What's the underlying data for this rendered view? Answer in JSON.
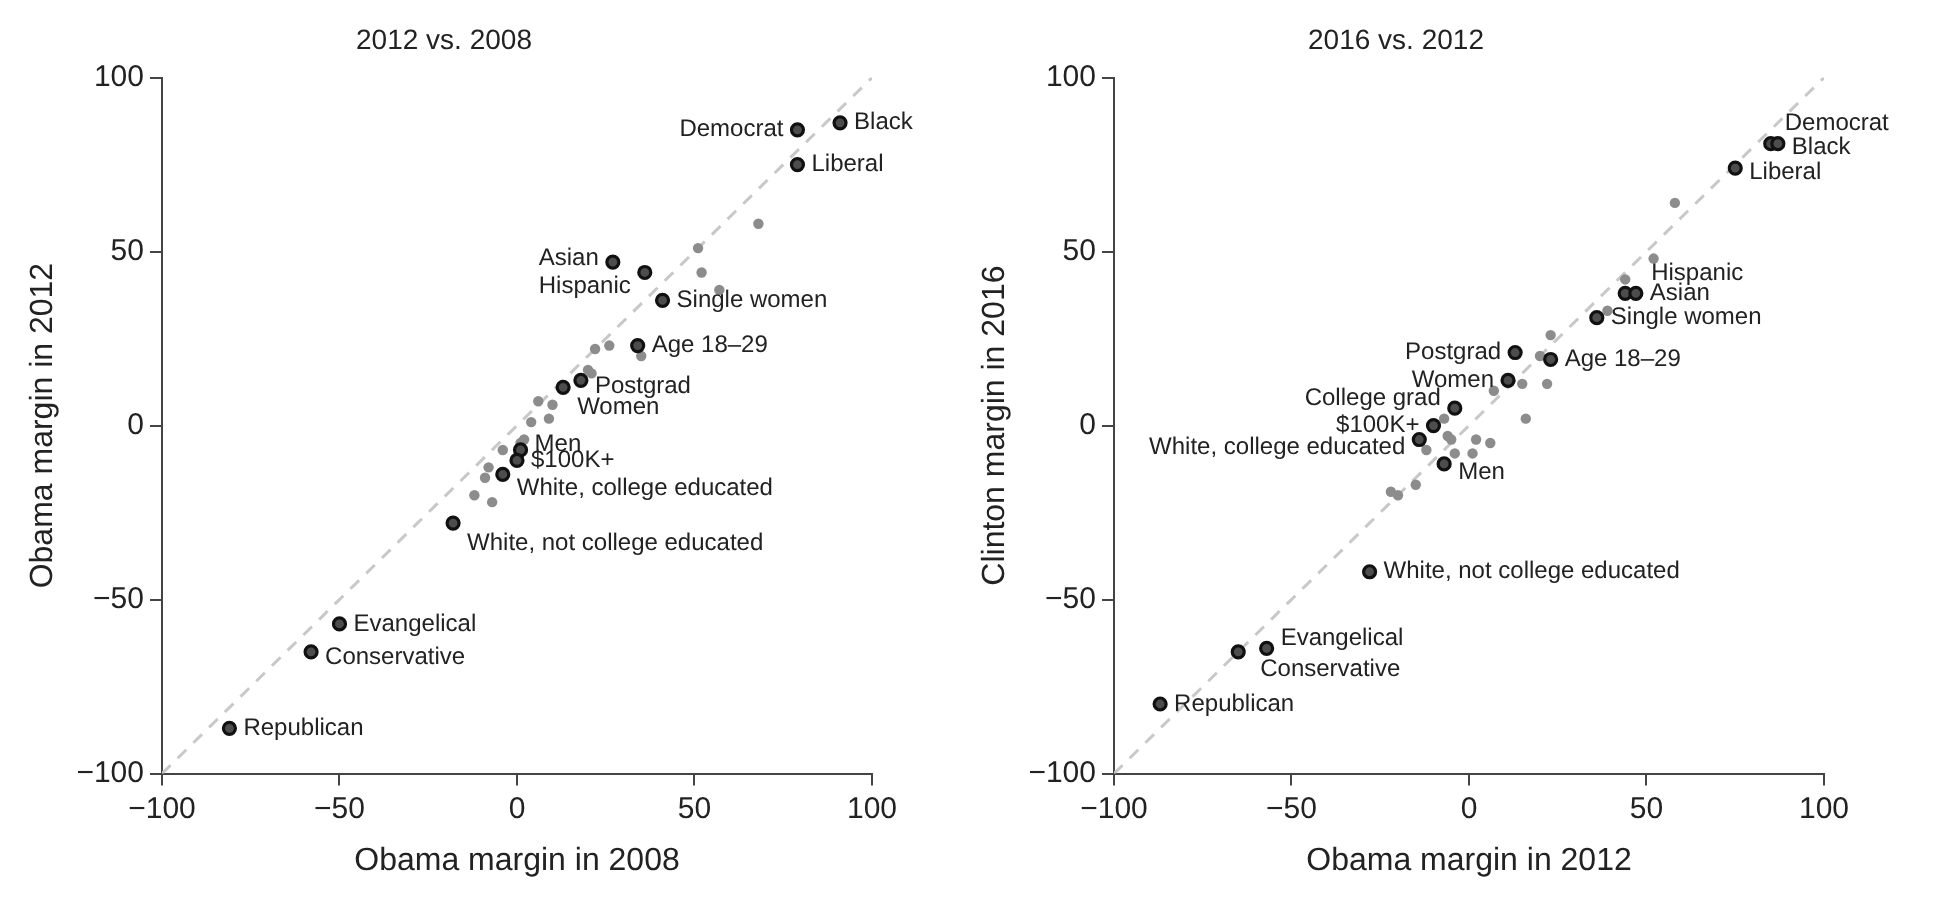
{
  "chart_data": [
    {
      "type": "scatter",
      "title": "2012 vs. 2008",
      "xlabel": "Obama margin in 2008",
      "ylabel": "Obama margin in 2012",
      "xlim": [
        -100,
        100
      ],
      "ylim": [
        -100,
        100
      ],
      "xticks": [
        -100,
        -50,
        0,
        50,
        100
      ],
      "yticks": [
        -100,
        -50,
        0,
        50,
        100
      ],
      "marker": "circle",
      "series": [
        {
          "type": "line",
          "color": "#c8c8c8",
          "line_style": "dashed",
          "marker": "none",
          "x": [
            -100,
            100
          ],
          "values": [
            -100,
            100
          ]
        },
        {
          "color": "#8c8c8c",
          "x": [
            68,
            51,
            52,
            57,
            22,
            26,
            35,
            20,
            21,
            6,
            10,
            4,
            9,
            2,
            1,
            -4,
            -8,
            -9,
            -12,
            -7
          ],
          "values": [
            58,
            51,
            44,
            39,
            22,
            23,
            20,
            16,
            15,
            7,
            6,
            1,
            2,
            -4,
            -5,
            -7,
            -12,
            -15,
            -20,
            -22
          ]
        },
        {
          "color": "#4d4d4d",
          "x": [
            91,
            79,
            79,
            27,
            36,
            41,
            34,
            18,
            13,
            1,
            0,
            -4,
            -18,
            -50,
            -58,
            -81
          ],
          "values": [
            87,
            85,
            75,
            47,
            44,
            36,
            23,
            13,
            11,
            -7,
            -10,
            -14,
            -28,
            -57,
            -65,
            -87
          ]
        }
      ],
      "annotations": [
        {
          "text": "Black",
          "x": 91,
          "y": 87
        },
        {
          "text": "Democrat",
          "x": 79,
          "y": 85
        },
        {
          "text": "Liberal",
          "x": 79,
          "y": 75
        },
        {
          "text": "Asian",
          "x": 27,
          "y": 47
        },
        {
          "text": "Hispanic",
          "x": 36,
          "y": 44
        },
        {
          "text": "Single women",
          "x": 41,
          "y": 36
        },
        {
          "text": "Age 18–29",
          "x": 34,
          "y": 23
        },
        {
          "text": "Postgrad",
          "x": 18,
          "y": 13
        },
        {
          "text": "Women",
          "x": 13,
          "y": 11
        },
        {
          "text": "Men",
          "x": 1,
          "y": -7
        },
        {
          "text": "$100K+",
          "x": 0,
          "y": -10
        },
        {
          "text": "White, college educated",
          "x": -4,
          "y": -14
        },
        {
          "text": "White, not college educated",
          "x": -18,
          "y": -28
        },
        {
          "text": "Evangelical",
          "x": -50,
          "y": -57
        },
        {
          "text": "Conservative",
          "x": -58,
          "y": -65
        },
        {
          "text": "Republican",
          "x": -81,
          "y": -87
        }
      ]
    },
    {
      "type": "scatter",
      "title": "2016 vs. 2012",
      "xlabel": "Obama margin in 2012",
      "ylabel": "Clinton margin in 2016",
      "xlim": [
        -100,
        100
      ],
      "ylim": [
        -100,
        100
      ],
      "xticks": [
        -100,
        -50,
        0,
        50,
        100
      ],
      "yticks": [
        -100,
        -50,
        0,
        50,
        100
      ],
      "marker": "circle",
      "series": [
        {
          "type": "line",
          "color": "#c8c8c8",
          "line_style": "dashed",
          "marker": "none",
          "x": [
            -100,
            100
          ],
          "values": [
            -100,
            100
          ]
        },
        {
          "color": "#8c8c8c",
          "x": [
            58,
            52,
            44,
            39,
            23,
            20,
            15,
            22,
            7,
            16,
            -7,
            -6,
            -5,
            2,
            6,
            -12,
            -4,
            1,
            -15,
            -22,
            -20
          ],
          "values": [
            64,
            48,
            42,
            33,
            26,
            20,
            12,
            12,
            10,
            2,
            2,
            -3,
            -4,
            -4,
            -5,
            -7,
            -8,
            -8,
            -17,
            -19,
            -20
          ]
        },
        {
          "color": "#4d4d4d",
          "x": [
            85,
            87,
            75,
            44,
            47,
            36,
            13,
            23,
            11,
            -4,
            -10,
            -14,
            -7,
            -28,
            -57,
            -65,
            -87
          ],
          "values": [
            81,
            81,
            74,
            38,
            38,
            31,
            21,
            19,
            13,
            5,
            0,
            -4,
            -11,
            -42,
            -64,
            -65,
            -80
          ]
        }
      ],
      "annotations": [
        {
          "text": "Democrat",
          "x": 85,
          "y": 81
        },
        {
          "text": "Black",
          "x": 87,
          "y": 81
        },
        {
          "text": "Liberal",
          "x": 75,
          "y": 74
        },
        {
          "text": "Hispanic",
          "x": 44,
          "y": 38
        },
        {
          "text": "Asian",
          "x": 47,
          "y": 38
        },
        {
          "text": "Single women",
          "x": 36,
          "y": 31
        },
        {
          "text": "Postgrad",
          "x": 13,
          "y": 21
        },
        {
          "text": "Age 18–29",
          "x": 23,
          "y": 19
        },
        {
          "text": "Women",
          "x": 11,
          "y": 13
        },
        {
          "text": "College grad",
          "x": -4,
          "y": 5
        },
        {
          "text": "$100K+",
          "x": -10,
          "y": 0
        },
        {
          "text": "White, college educated",
          "x": -14,
          "y": -4
        },
        {
          "text": "Men",
          "x": -7,
          "y": -11
        },
        {
          "text": "White, not college educated",
          "x": -28,
          "y": -42
        },
        {
          "text": "Evangelical",
          "x": -57,
          "y": -64
        },
        {
          "text": "Conservative",
          "x": -65,
          "y": -65
        },
        {
          "text": "Republican",
          "x": -87,
          "y": -80
        }
      ]
    }
  ]
}
